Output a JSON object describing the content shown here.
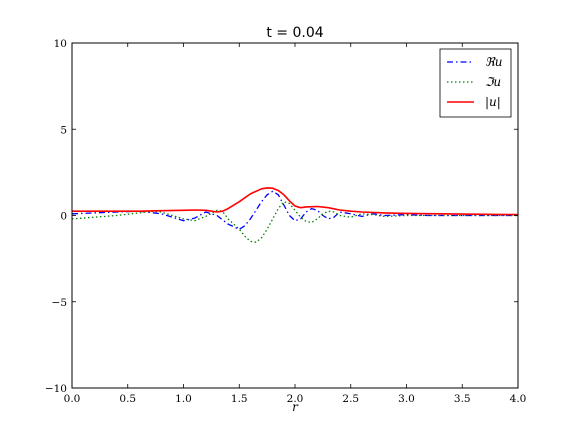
{
  "chart_data": {
    "type": "line",
    "title": "t = 0.04",
    "xlabel": "r",
    "ylabel": "",
    "xlim": [
      0.0,
      4.0
    ],
    "ylim": [
      -10,
      10
    ],
    "xticks": [
      0.0,
      0.5,
      1.0,
      1.5,
      2.0,
      2.5,
      3.0,
      3.5,
      4.0
    ],
    "xtick_labels": [
      "0.0",
      "0.5",
      "1.0",
      "1.5",
      "2.0",
      "2.5",
      "3.0",
      "3.5",
      "4.0"
    ],
    "yticks": [
      -10,
      -5,
      0,
      5,
      10
    ],
    "ytick_labels": [
      "−10",
      "−5",
      "0",
      "5",
      "10"
    ],
    "grid": false,
    "legend_position": "top-right",
    "series": [
      {
        "name": "ℜu",
        "color": "#0000ff",
        "style": "dashdot",
        "x": [
          0.0,
          0.2,
          0.4,
          0.6,
          0.8,
          0.9,
          1.0,
          1.1,
          1.2,
          1.3,
          1.4,
          1.5,
          1.55,
          1.6,
          1.65,
          1.7,
          1.75,
          1.8,
          1.85,
          1.9,
          1.95,
          2.0,
          2.05,
          2.1,
          2.15,
          2.2,
          2.25,
          2.3,
          2.35,
          2.4,
          2.5,
          2.6,
          2.7,
          2.8,
          3.0,
          3.2,
          3.5,
          4.0
        ],
        "y": [
          0.1,
          0.15,
          0.2,
          0.25,
          0.1,
          -0.1,
          -0.3,
          -0.15,
          0.2,
          0.0,
          -0.5,
          -0.8,
          -0.6,
          -0.2,
          0.3,
          0.8,
          1.2,
          1.4,
          1.2,
          0.6,
          0.0,
          -0.3,
          -0.2,
          0.2,
          0.4,
          0.3,
          0.0,
          -0.2,
          -0.1,
          0.2,
          0.1,
          -0.05,
          0.1,
          0.0,
          0.05,
          0.0,
          0.0,
          0.0
        ]
      },
      {
        "name": "ℑu",
        "color": "#008000",
        "style": "dotted",
        "x": [
          0.0,
          0.2,
          0.4,
          0.6,
          0.7,
          0.8,
          0.9,
          1.0,
          1.1,
          1.2,
          1.3,
          1.35,
          1.4,
          1.5,
          1.55,
          1.6,
          1.65,
          1.7,
          1.75,
          1.8,
          1.85,
          1.9,
          1.95,
          2.0,
          2.05,
          2.1,
          2.15,
          2.2,
          2.25,
          2.3,
          2.35,
          2.4,
          2.5,
          2.6,
          2.7,
          2.8,
          3.0,
          3.5,
          4.0
        ],
        "y": [
          -0.2,
          -0.1,
          0.0,
          0.15,
          0.25,
          0.2,
          0.0,
          -0.2,
          -0.3,
          -0.05,
          0.3,
          0.25,
          -0.2,
          -0.8,
          -1.2,
          -1.5,
          -1.55,
          -1.3,
          -0.8,
          -0.2,
          0.4,
          0.8,
          0.7,
          0.3,
          -0.1,
          -0.35,
          -0.4,
          -0.2,
          0.1,
          0.25,
          0.2,
          0.0,
          -0.1,
          0.1,
          0.05,
          -0.05,
          0.0,
          0.0,
          0.0
        ]
      },
      {
        "name": "|u|",
        "color": "#ff0000",
        "style": "solid",
        "x": [
          0.0,
          0.2,
          0.4,
          0.6,
          0.8,
          1.0,
          1.1,
          1.2,
          1.3,
          1.35,
          1.4,
          1.5,
          1.6,
          1.7,
          1.75,
          1.8,
          1.85,
          1.9,
          1.95,
          2.0,
          2.05,
          2.1,
          2.2,
          2.3,
          2.4,
          2.5,
          2.6,
          2.8,
          3.0,
          3.5,
          4.0
        ],
        "y": [
          0.25,
          0.25,
          0.25,
          0.25,
          0.28,
          0.3,
          0.32,
          0.3,
          0.2,
          0.25,
          0.4,
          0.8,
          1.25,
          1.55,
          1.6,
          1.58,
          1.45,
          1.2,
          0.85,
          0.55,
          0.45,
          0.5,
          0.52,
          0.45,
          0.32,
          0.25,
          0.2,
          0.15,
          0.12,
          0.08,
          0.05
        ]
      }
    ]
  }
}
